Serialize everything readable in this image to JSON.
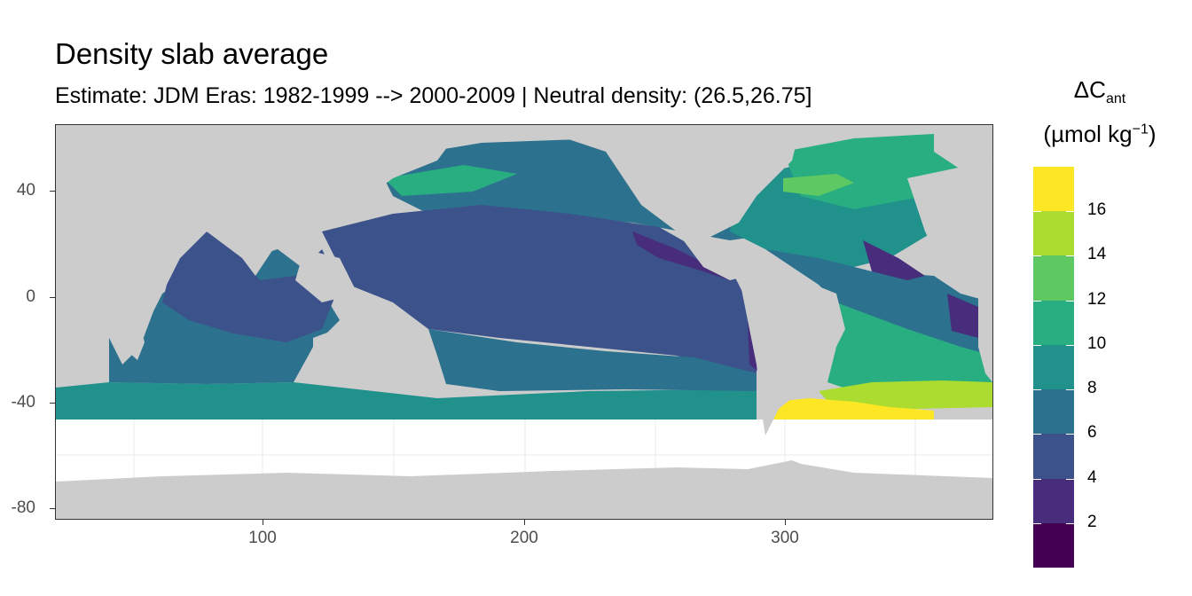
{
  "title": "Density slab average",
  "subtitle": "Estimate: JDM Eras: 1982-1999 --> 2000-2009 | Neutral density: (26.5,26.75]",
  "x_axis": {
    "ticks": [
      "100",
      "200",
      "300"
    ]
  },
  "y_axis": {
    "ticks": [
      "40",
      "0",
      "-40",
      "-80"
    ]
  },
  "legend": {
    "title_symbol": "ΔC",
    "title_subscript": "ant",
    "units_prefix": "(µmol kg",
    "units_superscript": "−1",
    "units_suffix": ")",
    "labels": [
      "16",
      "14",
      "12",
      "10",
      "8",
      "6",
      "4",
      "2"
    ],
    "colors": [
      "#fde725",
      "#addc30",
      "#5ec962",
      "#28ae80",
      "#21918c",
      "#2c728e",
      "#3b528b",
      "#472d7b",
      "#440154"
    ]
  },
  "map": {
    "land_color": "#cccccc",
    "no_data_color": "#ffffff",
    "x_range": [
      20,
      380
    ],
    "y_range": [
      -85,
      65
    ],
    "grid": true
  }
}
